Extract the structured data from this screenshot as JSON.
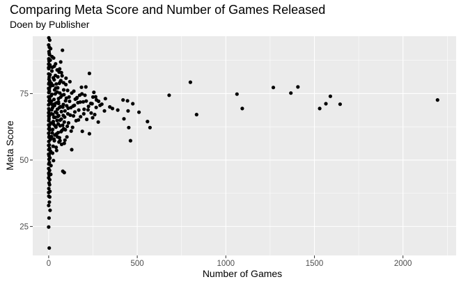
{
  "chart_data": {
    "type": "scatter",
    "title": "Comparing Meta Score and Number of Games Released",
    "subtitle": "Doen by Publisher",
    "xlabel": "Number of Games",
    "ylabel": "Meta Score",
    "xlim": [
      -90,
      2300
    ],
    "ylim": [
      14.1,
      96.6
    ],
    "xticks": [
      0,
      500,
      1000,
      1500,
      2000
    ],
    "yticks": [
      25,
      50,
      75
    ],
    "xticklabels": [
      "0",
      "500",
      "1000",
      "1500",
      "2000"
    ],
    "yticklabels": [
      "25",
      "50",
      "75"
    ],
    "grid": true,
    "legend": "none",
    "colors": {
      "panel": "#ebebeb",
      "grid_major": "#ffffff",
      "point": "#000000"
    },
    "points": [
      [
        2195,
        72.6
      ],
      [
        1645,
        71
      ],
      [
        1590,
        74
      ],
      [
        1565,
        71.2
      ],
      [
        1530,
        69.4
      ],
      [
        1407,
        77.5
      ],
      [
        1367,
        75.2
      ],
      [
        1268,
        77.3
      ],
      [
        1093,
        69.4
      ],
      [
        1063,
        74.8
      ],
      [
        835,
        67.1
      ],
      [
        800,
        79.3
      ],
      [
        680,
        74.4
      ],
      [
        572,
        62.2
      ],
      [
        558,
        64.5
      ],
      [
        510,
        68
      ],
      [
        475,
        71.2
      ],
      [
        462,
        57.3
      ],
      [
        452,
        62.2
      ],
      [
        448,
        68.5
      ],
      [
        445,
        72.3
      ],
      [
        425,
        65.5
      ],
      [
        420,
        72.6
      ],
      [
        390,
        68.8
      ],
      [
        360,
        69.4
      ],
      [
        345,
        70
      ],
      [
        315,
        68.5
      ],
      [
        290,
        70.6
      ],
      [
        280,
        64.3
      ],
      [
        270,
        72.6
      ],
      [
        255,
        75.5
      ],
      [
        250,
        73.7
      ],
      [
        245,
        71.2
      ],
      [
        240,
        67.7
      ],
      [
        230,
        59.9
      ],
      [
        215,
        65.3
      ],
      [
        200,
        69.1
      ],
      [
        195,
        71.9
      ],
      [
        190,
        60.8
      ],
      [
        185,
        77.4
      ],
      [
        175,
        74.4
      ],
      [
        170,
        68.8
      ],
      [
        160,
        73.5
      ],
      [
        150,
        72.9
      ],
      [
        145,
        70.6
      ],
      [
        140,
        66.6
      ],
      [
        130,
        75.2
      ],
      [
        125,
        69.7
      ],
      [
        115,
        73.7
      ],
      [
        112,
        64
      ],
      [
        105,
        62.7
      ],
      [
        130,
        53.9
      ],
      [
        210,
        77.5
      ],
      [
        230,
        82.6
      ],
      [
        265,
        73.8
      ],
      [
        300,
        71
      ],
      [
        320,
        73.1
      ],
      [
        95,
        72.3
      ],
      [
        92,
        68.5
      ],
      [
        88,
        56.3
      ],
      [
        85,
        76.4
      ],
      [
        82,
        66.8
      ],
      [
        80,
        45.8
      ],
      [
        78,
        91.3
      ],
      [
        75,
        74.4
      ],
      [
        72,
        68.2
      ],
      [
        70,
        60.7
      ],
      [
        68,
        86.9
      ],
      [
        66,
        79.5
      ],
      [
        64,
        65
      ],
      [
        62,
        84.3
      ],
      [
        60,
        69.7
      ],
      [
        58,
        56.8
      ],
      [
        56,
        73.1
      ],
      [
        54,
        63.6
      ],
      [
        52,
        81.3
      ],
      [
        50,
        58.7
      ],
      [
        48,
        75.6
      ],
      [
        46,
        67.7
      ],
      [
        44,
        71.5
      ],
      [
        42,
        54.8
      ],
      [
        40,
        62.8
      ],
      [
        38,
        81.8
      ],
      [
        36,
        66.1
      ],
      [
        34,
        76.4
      ],
      [
        32,
        57.3
      ],
      [
        30,
        72.8
      ],
      [
        28,
        88.4
      ],
      [
        26,
        64.5
      ],
      [
        24,
        78.1
      ],
      [
        22,
        69.7
      ],
      [
        20,
        60.2
      ],
      [
        18,
        83.5
      ],
      [
        16,
        67.4
      ],
      [
        14,
        74.2
      ],
      [
        12,
        44.6
      ],
      [
        10,
        57.8
      ],
      [
        8,
        71.5
      ],
      [
        6,
        63.3
      ],
      [
        4,
        76.9
      ],
      [
        3,
        52.3
      ],
      [
        2,
        79
      ],
      [
        1,
        66.6
      ],
      [
        1,
        45.1
      ],
      [
        0,
        84.8
      ],
      [
        88,
        45.3
      ],
      [
        92,
        57.5
      ],
      [
        85,
        61.8
      ],
      [
        98,
        80.8
      ],
      [
        102,
        70.4
      ],
      [
        108,
        67.4
      ],
      [
        120,
        79.5
      ],
      [
        135,
        62.3
      ],
      [
        155,
        64.8
      ],
      [
        165,
        71.6
      ],
      [
        180,
        66.3
      ],
      [
        205,
        74.4
      ],
      [
        225,
        70.2
      ],
      [
        260,
        67.1
      ],
      [
        1,
        96
      ],
      [
        0,
        93.3
      ],
      [
        2,
        90.8
      ],
      [
        1,
        88.1
      ],
      [
        0,
        86.1
      ],
      [
        1,
        84.4
      ],
      [
        0,
        82.4
      ],
      [
        2,
        80.4
      ],
      [
        1,
        78.6
      ],
      [
        0,
        77
      ],
      [
        1,
        75.4
      ],
      [
        0,
        73.8
      ],
      [
        2,
        72.3
      ],
      [
        0,
        70.8
      ],
      [
        1,
        69.3
      ],
      [
        0,
        67.8
      ],
      [
        2,
        66.3
      ],
      [
        1,
        64.8
      ],
      [
        0,
        63.2
      ],
      [
        1,
        61.7
      ],
      [
        0,
        60.1
      ],
      [
        2,
        58.6
      ],
      [
        1,
        57
      ],
      [
        0,
        55.5
      ],
      [
        1,
        53.9
      ],
      [
        0,
        52.2
      ],
      [
        2,
        50.3
      ],
      [
        1,
        48.5
      ],
      [
        0,
        46.8
      ],
      [
        1,
        44.9
      ],
      [
        0,
        43.3
      ],
      [
        2,
        41.4
      ],
      [
        1,
        39.3
      ],
      [
        0,
        37.8
      ],
      [
        1,
        36.4
      ],
      [
        4,
        34.2
      ],
      [
        0,
        32.9
      ],
      [
        8,
        31.1
      ],
      [
        2,
        28.2
      ],
      [
        0,
        24.8
      ],
      [
        3,
        16.9
      ],
      [
        6,
        95.1
      ],
      [
        5,
        89.6
      ],
      [
        7,
        85.8
      ],
      [
        6,
        79.7
      ],
      [
        4,
        75.9
      ],
      [
        7,
        71.3
      ],
      [
        5,
        66.9
      ],
      [
        6,
        61.3
      ],
      [
        4,
        55.7
      ],
      [
        7,
        50.8
      ],
      [
        5,
        46.1
      ],
      [
        6,
        42.6
      ],
      [
        5,
        40.7
      ],
      [
        7,
        38.2
      ],
      [
        6,
        36.1
      ],
      [
        4,
        92.4
      ],
      [
        8,
        82.1
      ],
      [
        10,
        77.8
      ],
      [
        12,
        63.9
      ],
      [
        9,
        58.2
      ],
      [
        11,
        53.3
      ],
      [
        13,
        47.9
      ],
      [
        15,
        72.1
      ],
      [
        17,
        68.9
      ],
      [
        19,
        88.9
      ],
      [
        21,
        84.9
      ],
      [
        23,
        61.5
      ],
      [
        25,
        55.2
      ],
      [
        27,
        49.8
      ],
      [
        29,
        66.1
      ],
      [
        31,
        80.2
      ],
      [
        33,
        70.5
      ],
      [
        35,
        59.4
      ],
      [
        37,
        74.9
      ],
      [
        39,
        86.2
      ],
      [
        41,
        62.4
      ],
      [
        43,
        78.6
      ],
      [
        45,
        53.6
      ],
      [
        47,
        64.9
      ],
      [
        49,
        69.1
      ],
      [
        51,
        77.2
      ],
      [
        53,
        60.3
      ],
      [
        55,
        71.9
      ],
      [
        57,
        66.7
      ],
      [
        59,
        83.1
      ],
      [
        61,
        58.4
      ],
      [
        63,
        75.2
      ],
      [
        65,
        62.9
      ],
      [
        67,
        70.1
      ],
      [
        69,
        79.9
      ],
      [
        71,
        65.4
      ],
      [
        73,
        55.9
      ],
      [
        76,
        81.7
      ],
      [
        79,
        63.1
      ],
      [
        83,
        70.9
      ],
      [
        86,
        74.6
      ],
      [
        90,
        66.2
      ],
      [
        94,
        61.4
      ],
      [
        97,
        78.4
      ],
      [
        100,
        73.3
      ],
      [
        103,
        58.7
      ],
      [
        107,
        76.2
      ],
      [
        110,
        69.5
      ],
      [
        118,
        72.1
      ],
      [
        122,
        66.9
      ],
      [
        127,
        60.9
      ],
      [
        138,
        70.3
      ],
      [
        142,
        75.9
      ],
      [
        148,
        68.1
      ],
      [
        158,
        73.2
      ],
      [
        168,
        65.1
      ],
      [
        178,
        71.8
      ],
      [
        188,
        74.9
      ],
      [
        198,
        67.4
      ],
      [
        212,
        72.2
      ],
      [
        222,
        68.9
      ],
      [
        238,
        71.3
      ],
      [
        248,
        65.9
      ],
      [
        268,
        69.8
      ],
      [
        282,
        72.1
      ],
      [
        3,
        90.1
      ],
      [
        2,
        87.3
      ],
      [
        4,
        85.1
      ],
      [
        3,
        81.2
      ],
      [
        2,
        76.6
      ],
      [
        5,
        73.1
      ],
      [
        3,
        68.7
      ],
      [
        2,
        65.5
      ],
      [
        4,
        62.1
      ],
      [
        3,
        58.9
      ],
      [
        5,
        54.4
      ],
      [
        2,
        51.6
      ],
      [
        4,
        49.1
      ],
      [
        3,
        44.3
      ],
      [
        9,
        87.6
      ],
      [
        11,
        91.9
      ],
      [
        14,
        78.9
      ],
      [
        16,
        58.8
      ],
      [
        18,
        74.7
      ],
      [
        20,
        70.9
      ],
      [
        22,
        52.6
      ],
      [
        24,
        67.2
      ],
      [
        26,
        80.9
      ],
      [
        28,
        63.5
      ],
      [
        30,
        57.9
      ],
      [
        32,
        85.3
      ],
      [
        34,
        71.1
      ],
      [
        36,
        62.9
      ],
      [
        38,
        68.1
      ],
      [
        40,
        77.1
      ],
      [
        44,
        59.8
      ],
      [
        48,
        83.9
      ],
      [
        52,
        66.4
      ],
      [
        56,
        71.3
      ],
      [
        60,
        78.9
      ],
      [
        64,
        57.3
      ],
      [
        68,
        73.7
      ],
      [
        72,
        82.9
      ],
      [
        76,
        61.2
      ],
      [
        80,
        69.9
      ],
      [
        84,
        79.1
      ],
      [
        88,
        64.3
      ]
    ]
  }
}
